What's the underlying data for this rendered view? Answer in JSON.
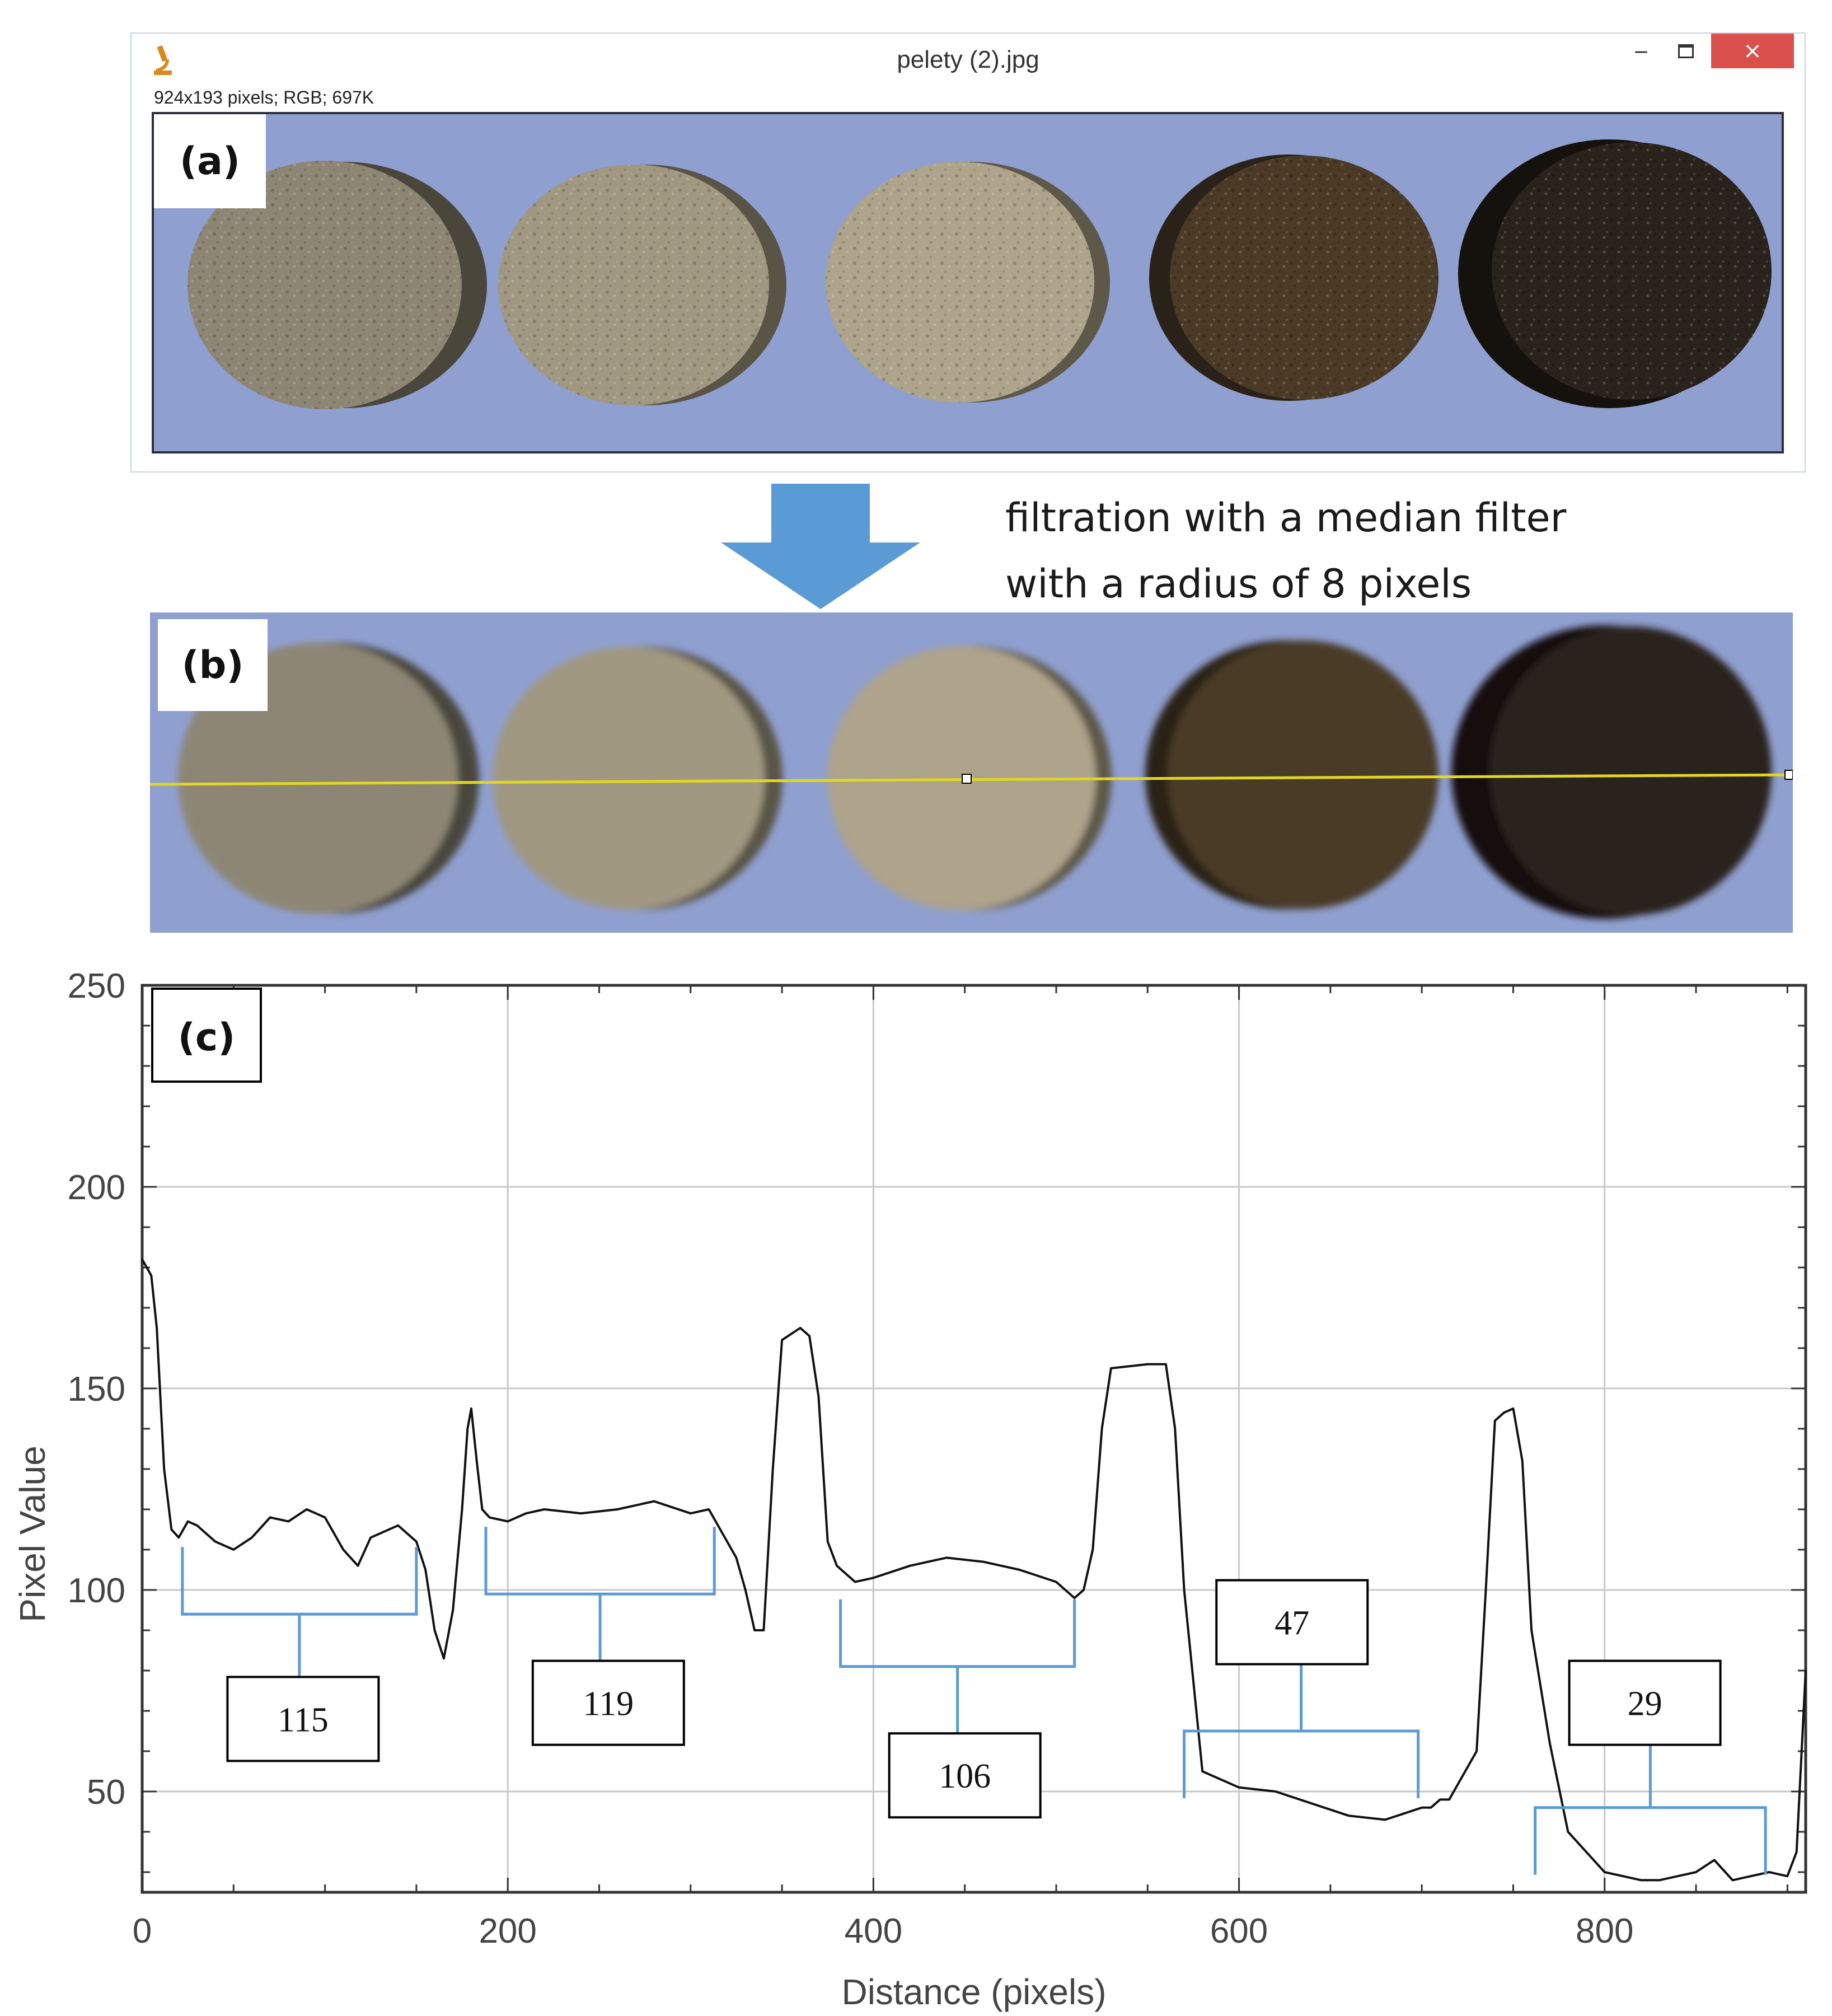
{
  "window": {
    "title": "pelety (2).jpg",
    "info": "924x193 pixels; RGB; 697K",
    "minimize_glyph": "‒",
    "close_glyph": "×",
    "app_icon": "microscope-icon"
  },
  "panels": {
    "a_label": "(a)",
    "b_label": "(b)",
    "c_label": "(c)"
  },
  "caption": {
    "line1": "filtration with a median filter",
    "line2": "with a radius of 8 pixels"
  },
  "colors": {
    "background_blue": "#8f9fcf",
    "arrow": "#5b9bd5",
    "bracket": "#5b9bd5",
    "profile_line": "#e0d820",
    "close_button": "#d9514a"
  },
  "pellets": [
    {
      "shade": "#8e8674",
      "shadow": "#4a463c"
    },
    {
      "shade": "#a19882",
      "shadow": "#5a5446"
    },
    {
      "shade": "#aea38b",
      "shadow": "#5e5848"
    },
    {
      "shade": "#4a3a26",
      "shadow": "#2a2218"
    },
    {
      "shade": "#2a231c",
      "shadow": "#15110d"
    }
  ],
  "chart_data": {
    "type": "line",
    "xlabel": "Distance (pixels)",
    "ylabel": "Pixel Value",
    "xlim": [
      0,
      910
    ],
    "ylim": [
      25,
      250
    ],
    "xticks": [
      "0",
      "200",
      "400",
      "600",
      "800"
    ],
    "yticks": [
      "50",
      "100",
      "150",
      "200",
      "250"
    ],
    "grid": true,
    "x": [
      0,
      5,
      8,
      12,
      16,
      20,
      25,
      30,
      40,
      50,
      60,
      70,
      80,
      90,
      100,
      110,
      118,
      125,
      130,
      140,
      150,
      155,
      160,
      165,
      170,
      175,
      178,
      180,
      183,
      186,
      190,
      200,
      210,
      220,
      240,
      260,
      280,
      300,
      310,
      320,
      325,
      330,
      335,
      340,
      345,
      350,
      360,
      365,
      370,
      375,
      380,
      385,
      390,
      400,
      420,
      440,
      460,
      480,
      500,
      510,
      515,
      520,
      525,
      530,
      550,
      555,
      560,
      565,
      570,
      580,
      600,
      620,
      640,
      660,
      680,
      700,
      705,
      710,
      715,
      730,
      735,
      740,
      745,
      750,
      755,
      760,
      770,
      780,
      800,
      820,
      830,
      840,
      850,
      860,
      870,
      880,
      890,
      900,
      905,
      910
    ],
    "series": [
      {
        "values": [
          182,
          178,
          165,
          130,
          115,
          113,
          117,
          116,
          112,
          110,
          113,
          118,
          117,
          120,
          118,
          110,
          106,
          113,
          114,
          116,
          112,
          105,
          90,
          83,
          95,
          120,
          140,
          145,
          132,
          120,
          118,
          117,
          119,
          120,
          119,
          120,
          122,
          119,
          120,
          112,
          108,
          100,
          90,
          90,
          130,
          162,
          165,
          163,
          148,
          112,
          106,
          104,
          102,
          103,
          106,
          108,
          107,
          105,
          102,
          98,
          100,
          110,
          140,
          155,
          156,
          156,
          156,
          140,
          100,
          55,
          51,
          50,
          47,
          44,
          43,
          46,
          46,
          48,
          48,
          60,
          100,
          142,
          144,
          145,
          132,
          90,
          62,
          40,
          30,
          28,
          28,
          29,
          30,
          33,
          28,
          29,
          30,
          29,
          35,
          80
        ]
      }
    ],
    "annotations": [
      {
        "label": "115",
        "x_from": 22,
        "x_to": 150,
        "bracket_y": 94,
        "box_x": 88,
        "box_y": 68
      },
      {
        "label": "119",
        "x_from": 188,
        "x_to": 313,
        "bracket_y": 99,
        "box_x": 255,
        "box_y": 72
      },
      {
        "label": "106",
        "x_from": 382,
        "x_to": 510,
        "bracket_y": 81,
        "box_x": 450,
        "box_y": 54
      },
      {
        "label": "47",
        "x_from": 570,
        "x_to": 698,
        "bracket_y": 65,
        "box_x": 629,
        "box_y": 92
      },
      {
        "label": "29",
        "x_from": 762,
        "x_to": 888,
        "bracket_y": 46,
        "box_x": 822,
        "box_y": 72
      }
    ]
  }
}
